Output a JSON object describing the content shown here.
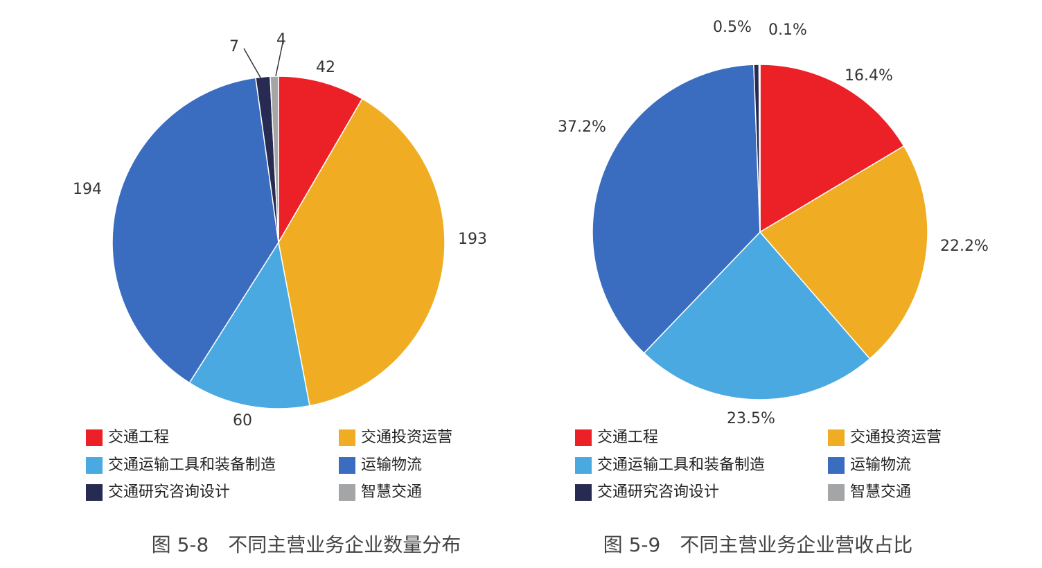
{
  "legend_labels": [
    "交通工程",
    "交通投资运营",
    "交通运输工具和装备制造",
    "运输物流",
    "交通研究咨询设计",
    "智慧交通"
  ],
  "colors": [
    "#ec2027",
    "#f0ad23",
    "#4aa9e1",
    "#3a6cbf",
    "#272b52",
    "#a3a5a6"
  ],
  "chart_data": [
    {
      "type": "pie",
      "title": "图 5-8　不同主营业务企业数量分布",
      "categories": [
        "交通工程",
        "交通投资运营",
        "交通运输工具和装备制造",
        "运输物流",
        "交通研究咨询设计",
        "智慧交通"
      ],
      "values": [
        42,
        193,
        60,
        194,
        7,
        4
      ],
      "data_labels": [
        "42",
        "193",
        "60",
        "194",
        "7",
        "4"
      ],
      "legend_position": "bottom"
    },
    {
      "type": "pie",
      "title": "图 5-9　不同主营业务企业营收占比",
      "categories": [
        "交通工程",
        "交通投资运营",
        "交通运输工具和装备制造",
        "运输物流",
        "交通研究咨询设计",
        "智慧交通"
      ],
      "values": [
        16.4,
        22.2,
        23.5,
        37.2,
        0.5,
        0.1
      ],
      "data_labels": [
        "16.4%",
        "22.2%",
        "23.5%",
        "37.2%",
        "0.5%",
        "0.1%"
      ],
      "legend_position": "bottom"
    }
  ]
}
